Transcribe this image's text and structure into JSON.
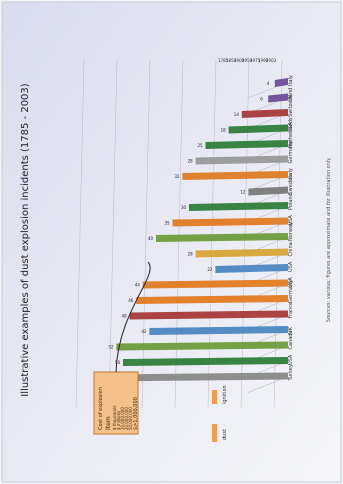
{
  "slide": {
    "title": "Illustrative examples of dust explosion incidents (1785 - 2003)",
    "footnote": "Sources: various; figures are approximate and for illustration only"
  },
  "legend": {
    "title": "Cost of explosion",
    "subtitle": "Item",
    "items": [
      "$ thousands",
      "$ millions",
      "10,000,000",
      "20,000,000",
      "50,000,000"
    ],
    "big": "$>1,000,000"
  },
  "key": {
    "items": [
      "dust",
      "ignition"
    ]
  },
  "chart_data": {
    "type": "bar",
    "title": "Illustrative examples of dust explosion incidents (1785 - 2003)",
    "categories": [
      "Italy",
      "UK",
      "Switzerland",
      "USA",
      "Netherlands",
      "Germany",
      "Italy",
      "Sweden",
      "Poland",
      "USA",
      "Norway",
      "China",
      "USA",
      "USA",
      "Germany",
      "France",
      "UK",
      "Canada",
      "USA",
      "Turkey"
    ],
    "y_ticks": [
      "1785",
      "1850",
      "1900",
      "1950",
      "1975",
      "1990",
      "2003"
    ],
    "values": [
      4,
      6,
      14,
      18,
      25,
      28,
      32,
      12,
      30,
      35,
      40,
      28,
      22,
      44,
      46,
      48,
      42,
      52,
      50,
      54
    ],
    "colors": [
      "#6b4c9a",
      "#6b4c9a",
      "#a83a3a",
      "#2e7d3b",
      "#2e7d3b",
      "#999999",
      "#e07b22",
      "#7a7a7a",
      "#2e7d3b",
      "#e07b22",
      "#6f9b3a",
      "#d9a437",
      "#4b87c1",
      "#e07b22",
      "#e07b22",
      "#a83a3a",
      "#4b87c1",
      "#6f9b3a",
      "#2e7d3b",
      "#888888"
    ],
    "xlim": [
      0,
      60
    ],
    "grid": true
  }
}
